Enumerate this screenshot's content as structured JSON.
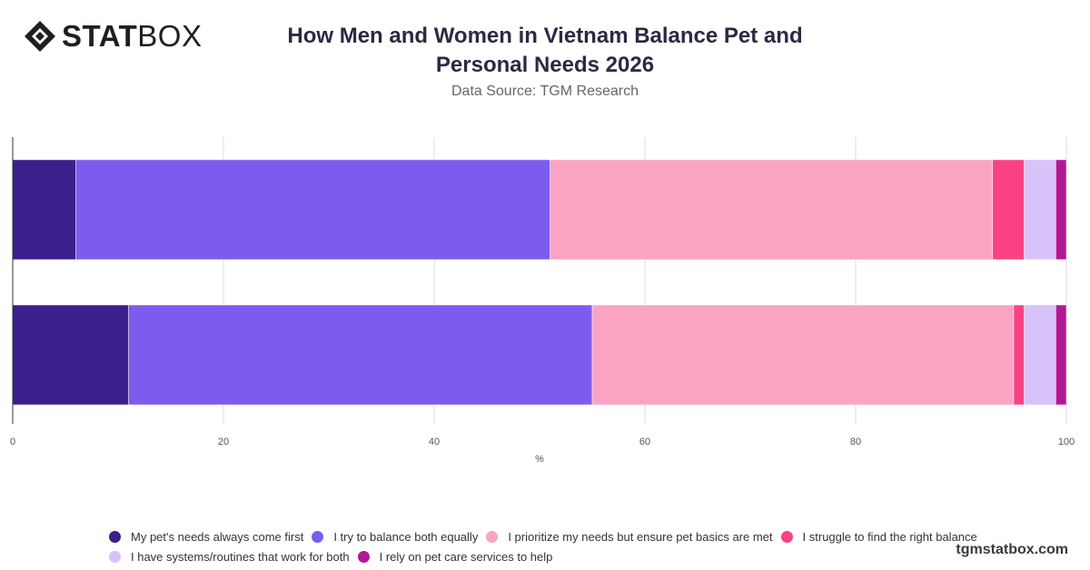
{
  "logo": {
    "bold": "STAT",
    "light": "BOX"
  },
  "title": "How Men and Women in Vietnam Balance Pet and Personal Needs 2026",
  "subtitle": "Data Source: TGM Research",
  "footer": "tgmstatbox.com",
  "chart_data": {
    "type": "bar",
    "orientation": "horizontal",
    "stacked": true,
    "categories": [
      "",
      ""
    ],
    "xlabel": "%",
    "ylabel": "",
    "xlim": [
      0,
      100
    ],
    "xticks": [
      "0",
      "20",
      "40",
      "60",
      "80",
      "100"
    ],
    "grid": true,
    "legend_position": "bottom",
    "series": [
      {
        "name": "My pet's needs always come first",
        "color": "#3b1f8a",
        "values": [
          6,
          11
        ]
      },
      {
        "name": "I try to balance both equally",
        "color": "#7b5cef",
        "values": [
          45,
          44
        ]
      },
      {
        "name": "I prioritize my needs but ensure pet basics are met",
        "color": "#fba3c3",
        "values": [
          42,
          40
        ]
      },
      {
        "name": "I struggle to find the right balance",
        "color": "#f94283",
        "values": [
          3,
          1
        ]
      },
      {
        "name": "I have systems/routines that work for both",
        "color": "#d7c3fa",
        "values": [
          3,
          3
        ]
      },
      {
        "name": "I rely on pet care services to help",
        "color": "#b21895",
        "values": [
          1,
          1
        ]
      }
    ]
  }
}
